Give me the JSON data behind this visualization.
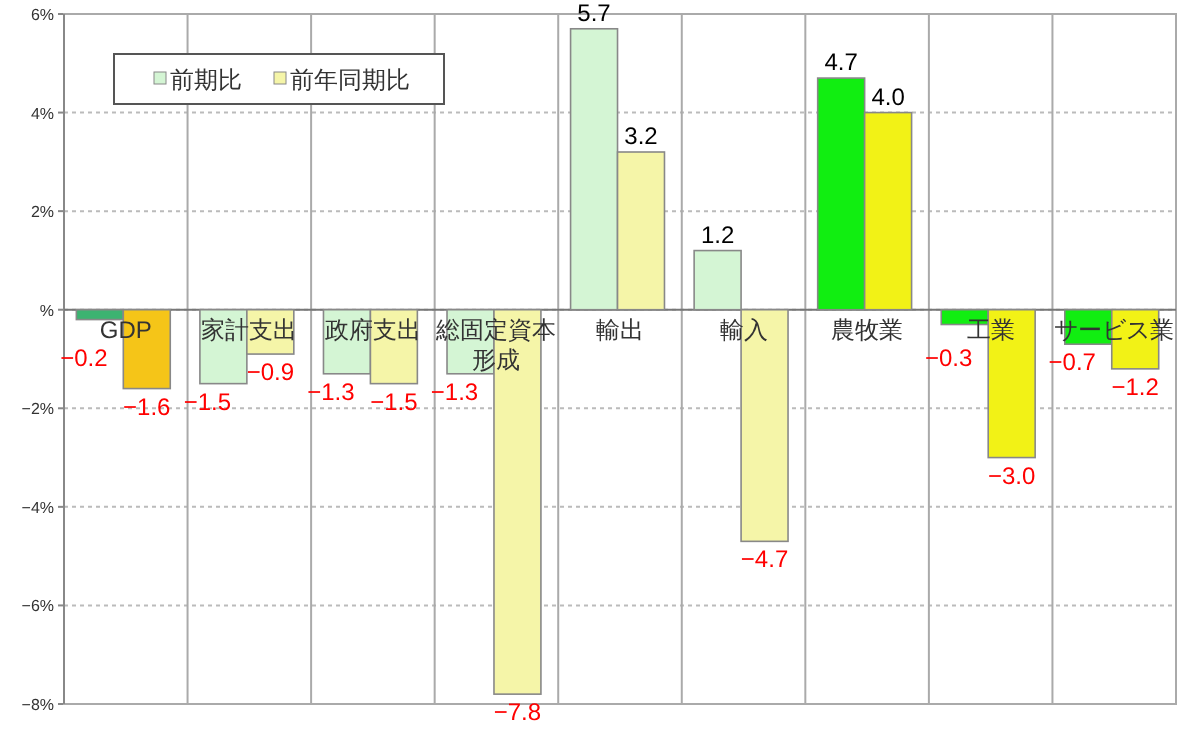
{
  "chart_data": {
    "type": "bar",
    "categories": [
      "GDP",
      "家計支出",
      "政府支出",
      "総固定資本形成",
      "輸出",
      "輸入",
      "農牧業",
      "工業",
      "サービス業"
    ],
    "series": [
      {
        "name": "前期比",
        "color": "#d4f5d4",
        "colors": [
          "#3cb371",
          "#d4f5d4",
          "#d4f5d4",
          "#d4f5d4",
          "#d4f5d4",
          "#d4f5d4",
          "#11ee11",
          "#11ee11",
          "#11ee11"
        ],
        "values": [
          -0.2,
          -1.5,
          -1.3,
          -1.3,
          5.7,
          1.2,
          4.7,
          -0.3,
          -0.7
        ],
        "value_labels": [
          "−0.2",
          "−1.5",
          "−1.3",
          "−1.3",
          "5.7",
          "1.2",
          "4.7",
          "−0.3",
          "−0.7"
        ]
      },
      {
        "name": "前年同期比",
        "color": "#f5f5a8",
        "colors": [
          "#f5c518",
          "#f5f5a8",
          "#f5f5a8",
          "#f5f5a8",
          "#f5f5a8",
          "#f5f5a8",
          "#f2f216",
          "#f2f216",
          "#f2f216"
        ],
        "values": [
          -1.6,
          -0.9,
          -1.5,
          -7.8,
          3.2,
          -4.7,
          4.0,
          -3.0,
          -1.2
        ],
        "value_labels": [
          "−1.6",
          "−0.9",
          "−1.5",
          "−7.8",
          "3.2",
          "−4.7",
          "4.0",
          "−3.0",
          "−1.2"
        ]
      }
    ],
    "ylim": [
      -8,
      6
    ],
    "yticks": [
      {
        "value": 6,
        "label": "6%"
      },
      {
        "value": 4,
        "label": "4%"
      },
      {
        "value": 2,
        "label": "2%"
      },
      {
        "value": 0,
        "label": "%"
      },
      {
        "value": -2,
        "label": "−2%"
      },
      {
        "value": -4,
        "label": "−4%"
      },
      {
        "value": -6,
        "label": "−6%"
      },
      {
        "value": -8,
        "label": "−8%"
      }
    ],
    "grid": true,
    "legend": "top left"
  }
}
